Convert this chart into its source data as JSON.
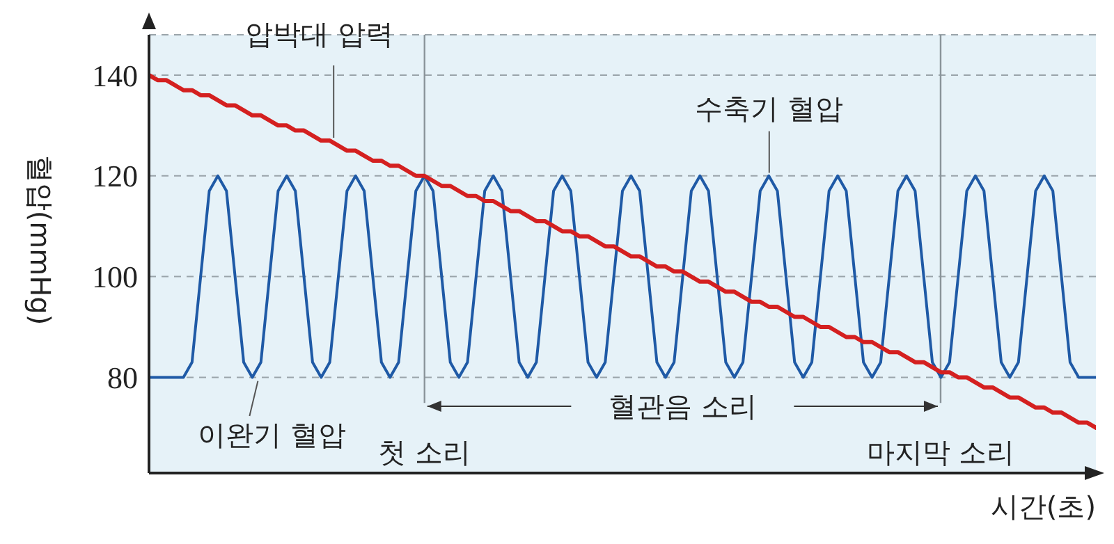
{
  "chart_data": {
    "type": "line",
    "xlabel": "시간(초)",
    "ylabel": "혈압(mmHg)",
    "categories": [
      null,
      null,
      null,
      null,
      null,
      null,
      null,
      null,
      null,
      null,
      null,
      null,
      null,
      null,
      null,
      null,
      null,
      null,
      null,
      null,
      null,
      null,
      null,
      null,
      null,
      null,
      null,
      null,
      null,
      null,
      null,
      null,
      null,
      null,
      null,
      null,
      null,
      null,
      null,
      null,
      null,
      null,
      null,
      null,
      null,
      null,
      null,
      null,
      null,
      null,
      null,
      null,
      null,
      null,
      null,
      null,
      null,
      null,
      null,
      null,
      null,
      null,
      null,
      null,
      null,
      null,
      null,
      null,
      null,
      null,
      null,
      null,
      null,
      null,
      null,
      null,
      null,
      null,
      null,
      null,
      null,
      null,
      null,
      null,
      null,
      null,
      null,
      null,
      null,
      null,
      null,
      null,
      null,
      null,
      null,
      null,
      null,
      null,
      null,
      null,
      null,
      null,
      null,
      null,
      null,
      null,
      null,
      null,
      null,
      null,
      null
    ],
    "series": [
      {
        "color": "#1f5aa6",
        "values": [
          80,
          80,
          80,
          80,
          80,
          83,
          100,
          117,
          120,
          117,
          100,
          83,
          80,
          83,
          100,
          117,
          120,
          117,
          100,
          83,
          80,
          83,
          100,
          117,
          120,
          117,
          100,
          83,
          80,
          83,
          100,
          117,
          120,
          117,
          100,
          83,
          80,
          83,
          100,
          117,
          120,
          117,
          100,
          83,
          80,
          83,
          100,
          117,
          120,
          117,
          100,
          83,
          80,
          83,
          100,
          117,
          120,
          117,
          100,
          83,
          80,
          83,
          100,
          117,
          120,
          117,
          100,
          83,
          80,
          83,
          100,
          117,
          120,
          117,
          100,
          83,
          80,
          83,
          100,
          117,
          120,
          117,
          100,
          83,
          80,
          83,
          100,
          117,
          120,
          117,
          100,
          83,
          80,
          83,
          100,
          117,
          120,
          117,
          100,
          83,
          80,
          83,
          100,
          117,
          120,
          117,
          100,
          83,
          80,
          80,
          80
        ]
      },
      {
        "color": "#d42020",
        "values": [
          140,
          139,
          139,
          138,
          137,
          137,
          136,
          136,
          135,
          134,
          134,
          133,
          132,
          132,
          131,
          130,
          130,
          129,
          129,
          128,
          127,
          127,
          126,
          125,
          125,
          124,
          123,
          123,
          122,
          122,
          121,
          120,
          120,
          119,
          118,
          118,
          117,
          116,
          116,
          115,
          115,
          114,
          113,
          113,
          112,
          111,
          111,
          110,
          109,
          109,
          108,
          108,
          107,
          106,
          106,
          105,
          104,
          104,
          103,
          102,
          102,
          101,
          101,
          100,
          99,
          99,
          98,
          97,
          97,
          96,
          95,
          95,
          94,
          94,
          93,
          92,
          92,
          91,
          90,
          90,
          89,
          88,
          88,
          87,
          87,
          86,
          85,
          85,
          84,
          83,
          83,
          82,
          81,
          81,
          80,
          80,
          79,
          78,
          78,
          77,
          76,
          76,
          75,
          74,
          74,
          73,
          73,
          72,
          71,
          71,
          70
        ]
      }
    ],
    "ylim": [
      61,
      148
    ],
    "yticks": [
      80,
      100,
      120,
      140
    ],
    "grid": "y",
    "tick_labels": "y",
    "annotations": [
      "압박대 압력",
      "수축기 혈압",
      "이완기 혈압",
      "혈관음 소리",
      "첫 소리",
      "마지막 소리"
    ]
  }
}
